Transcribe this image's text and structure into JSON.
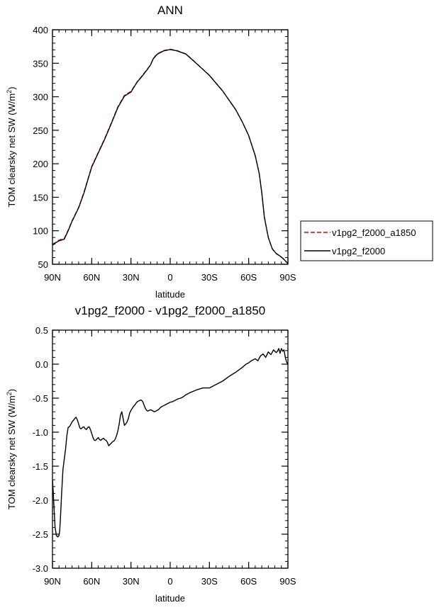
{
  "colors": {
    "red": "#e00000",
    "black": "#000000"
  },
  "chart_data": [
    {
      "type": "line",
      "title": "ANN",
      "xlabel": "latitude",
      "ylabel": "TOM clearsky net SW (W/m",
      "ylabel_sup": "2",
      "ylabel_close": ")",
      "xlim": [
        90,
        -90
      ],
      "ylim": [
        50,
        400
      ],
      "yticks": [
        50,
        100,
        150,
        200,
        250,
        300,
        350,
        400
      ],
      "ytick_labels": [
        "50",
        "100",
        "150",
        "200",
        "250",
        "300",
        "350",
        "400"
      ],
      "xticks": [
        90,
        60,
        30,
        0,
        -30,
        -60,
        -90
      ],
      "xtick_labels": [
        "90N",
        "60N",
        "30N",
        "0",
        "30S",
        "60S",
        "90S"
      ],
      "legend": {
        "placement": "right",
        "entries": [
          {
            "name": "v1pg2_f2000_a1850",
            "style": "dashed",
            "color": "#e00000"
          },
          {
            "name": "v1pg2_f2000",
            "style": "solid",
            "color": "#000000"
          }
        ]
      },
      "series": [
        {
          "name": "v1pg2_f2000_a1850",
          "style": "dashed",
          "color": "#e00000",
          "x": [
            90,
            88,
            85,
            81,
            78,
            75,
            70,
            66,
            60,
            55,
            50,
            45,
            40,
            35,
            30,
            27,
            25,
            22,
            18,
            15,
            13,
            10,
            5,
            0,
            -5,
            -12,
            -20,
            -30,
            -40,
            -50,
            -55,
            -60,
            -65,
            -68,
            -70,
            -72,
            -75,
            -78,
            -81,
            -84,
            -86,
            -88,
            -90
          ],
          "values": [
            80.0,
            82.0,
            86.0,
            88.5,
            101.0,
            115.0,
            135.0,
            157.0,
            196.0,
            217.0,
            238.0,
            261.0,
            285.0,
            302.0,
            308.0,
            317.0,
            323.0,
            330.0,
            340.0,
            348.0,
            357.0,
            364.0,
            369.0,
            371.0,
            369.0,
            364.0,
            350.0,
            332.0,
            309.0,
            281.0,
            263.0,
            242.0,
            212.0,
            186.0,
            157.0,
            120.0,
            90.0,
            73.0,
            66.0,
            62.0,
            59.0,
            55.0,
            51.0
          ]
        },
        {
          "name": "v1pg2_f2000",
          "style": "solid",
          "color": "#000000",
          "x": [
            90,
            88,
            85,
            81,
            78,
            75,
            70,
            66,
            60,
            55,
            50,
            45,
            40,
            35,
            30,
            27,
            25,
            22,
            18,
            15,
            13,
            10,
            5,
            0,
            -5,
            -12,
            -20,
            -30,
            -40,
            -50,
            -55,
            -60,
            -65,
            -68,
            -70,
            -72,
            -75,
            -78,
            -81,
            -84,
            -86,
            -88,
            -90
          ],
          "values": [
            78.3,
            81.5,
            85.0,
            87.5,
            100.0,
            114.2,
            134.2,
            156.0,
            195.1,
            216.0,
            237.0,
            260.0,
            284.0,
            301.0,
            307.0,
            316.5,
            322.5,
            329.4,
            339.4,
            347.5,
            356.5,
            363.4,
            368.5,
            370.5,
            368.6,
            363.7,
            349.8,
            331.8,
            308.9,
            281.0,
            263.0,
            242.1,
            212.2,
            186.2,
            157.2,
            120.2,
            90.2,
            73.2,
            66.2,
            62.2,
            59.1,
            55.2,
            51.0
          ]
        }
      ]
    },
    {
      "type": "line",
      "title": "v1pg2_f2000 - v1pg2_f2000_a1850",
      "xlabel": "latitude",
      "ylabel": "TOM clearsky net SW (W/m",
      "ylabel_sup": "2",
      "ylabel_close": ")",
      "xlim": [
        90,
        -90
      ],
      "ylim": [
        -3.0,
        0.5
      ],
      "yticks": [
        -3.0,
        -2.5,
        -2.0,
        -1.5,
        -1.0,
        -0.5,
        0.0,
        0.5
      ],
      "ytick_labels": [
        "-3.0",
        "-2.5",
        "-2.0",
        "-1.5",
        "-1.0",
        "-0.5",
        "0.0",
        "0.5"
      ],
      "xticks": [
        90,
        60,
        30,
        0,
        -30,
        -60,
        -90
      ],
      "xtick_labels": [
        "90N",
        "60N",
        "30N",
        "0",
        "30S",
        "60S",
        "90S"
      ],
      "series": [
        {
          "name": "difference",
          "style": "solid",
          "color": "#000000",
          "x": [
            90,
            89.5,
            89,
            88,
            87,
            86,
            85,
            84.5,
            84,
            83,
            82,
            81,
            80,
            79,
            78,
            77,
            75,
            73,
            72,
            71,
            70,
            69,
            68,
            67,
            66,
            65,
            64,
            63,
            62,
            61,
            60,
            59,
            58,
            57,
            56,
            55,
            54,
            53,
            52,
            51,
            50,
            49,
            48,
            47,
            46,
            45,
            44,
            43,
            42,
            41,
            40,
            39,
            38,
            37,
            36,
            35,
            34,
            33,
            32,
            31,
            30,
            29,
            28,
            27,
            26,
            25,
            24,
            23,
            22,
            21,
            20,
            19,
            18,
            17,
            16,
            15,
            14,
            13,
            12,
            11,
            10,
            9,
            8,
            7,
            6,
            5,
            4,
            3,
            2,
            1,
            0,
            -2,
            -4,
            -6,
            -8,
            -10,
            -12,
            -15,
            -20,
            -25,
            -30,
            -35,
            -40,
            -45,
            -50,
            -55,
            -58,
            -60,
            -62,
            -65,
            -67,
            -69,
            -71,
            -73,
            -75,
            -77,
            -79,
            -81,
            -82,
            -83,
            -84,
            -85,
            -86,
            -87,
            -88,
            -89,
            -90
          ],
          "values": [
            -1.7,
            -1.85,
            -2.05,
            -2.4,
            -2.52,
            -2.54,
            -2.52,
            -2.45,
            -2.3,
            -1.9,
            -1.55,
            -1.4,
            -1.25,
            -1.05,
            -0.93,
            -0.92,
            -0.85,
            -0.8,
            -0.78,
            -0.82,
            -0.88,
            -0.94,
            -0.95,
            -0.93,
            -0.92,
            -0.95,
            -0.96,
            -0.93,
            -0.92,
            -0.96,
            -1.02,
            -1.08,
            -1.12,
            -1.12,
            -1.1,
            -1.08,
            -1.11,
            -1.12,
            -1.1,
            -1.09,
            -1.11,
            -1.12,
            -1.15,
            -1.2,
            -1.18,
            -1.16,
            -1.14,
            -1.13,
            -1.1,
            -1.05,
            -0.98,
            -0.88,
            -0.75,
            -0.7,
            -0.8,
            -0.9,
            -0.88,
            -0.85,
            -0.8,
            -0.72,
            -0.68,
            -0.65,
            -0.62,
            -0.6,
            -0.57,
            -0.55,
            -0.54,
            -0.53,
            -0.53,
            -0.55,
            -0.6,
            -0.65,
            -0.68,
            -0.69,
            -0.68,
            -0.67,
            -0.68,
            -0.69,
            -0.7,
            -0.69,
            -0.68,
            -0.67,
            -0.65,
            -0.63,
            -0.62,
            -0.61,
            -0.6,
            -0.59,
            -0.58,
            -0.57,
            -0.56,
            -0.55,
            -0.53,
            -0.51,
            -0.5,
            -0.48,
            -0.45,
            -0.42,
            -0.38,
            -0.35,
            -0.35,
            -0.3,
            -0.25,
            -0.18,
            -0.12,
            -0.05,
            0.0,
            0.02,
            0.05,
            0.08,
            0.05,
            0.12,
            0.15,
            0.1,
            0.18,
            0.14,
            0.21,
            0.17,
            0.19,
            0.23,
            0.16,
            0.23,
            0.19,
            0.21,
            0.1,
            0.03,
            0.0
          ]
        }
      ]
    }
  ]
}
